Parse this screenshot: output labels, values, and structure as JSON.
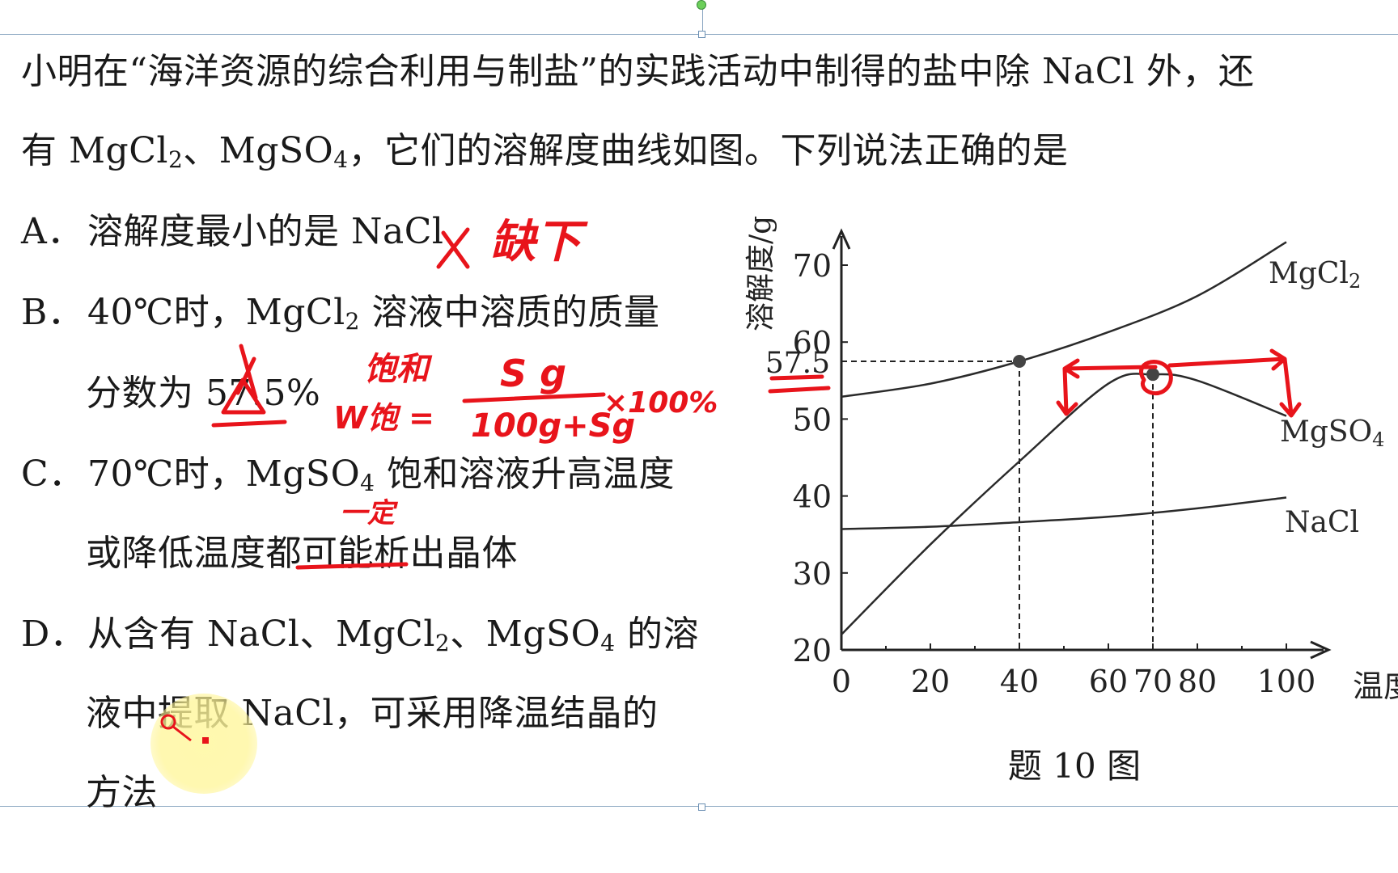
{
  "question": {
    "line1": "小明在“海洋资源的综合利用与制盐”的实践活动中制得的盐中除 NaCl 外，还",
    "line2_pre": "有 MgCl",
    "line2_sub1": "2",
    "line2_mid": "、MgSO",
    "line2_sub2": "4",
    "line2_post": "，它们的溶解度曲线如图。下列说法正确的是"
  },
  "options": {
    "a": {
      "letter": "A．",
      "text": "溶解度最小的是 NaCl"
    },
    "b": {
      "letter": "B．",
      "line1_pre": "40℃时，MgCl",
      "line1_sub": "2",
      "line1_post": " 溶液中溶质的质量",
      "line2": "分数为 57.5%"
    },
    "c": {
      "letter": "C．",
      "line1_pre": "70℃时，MgSO",
      "line1_sub": "4",
      "line1_post": " 饱和溶液升高温度",
      "line2": "或降低温度都可能析出晶体"
    },
    "d": {
      "letter": "D．",
      "line1_pre": "从含有 NaCl、MgCl",
      "line1_sub1": "2",
      "line1_mid": "、MgSO",
      "line1_sub2": "4",
      "line1_post": " 的溶",
      "line2": "液中提取 NaCl，可采用降温结晶的",
      "line3": "方法"
    }
  },
  "chart_data": {
    "type": "line",
    "ylabel": "溶解度/g",
    "xlabel": "温度/℃",
    "caption": "题 10 图",
    "x_ticks": [
      "0",
      "20",
      "40",
      "60",
      "70",
      "80",
      "100"
    ],
    "y_ticks": [
      "20",
      "30",
      "40",
      "50",
      "60",
      "70"
    ],
    "marked_y_label": "57.5",
    "xlim": [
      0,
      100
    ],
    "ylim": [
      20,
      70
    ],
    "series": [
      {
        "name": "MgCl2",
        "x": [
          0,
          20,
          40,
          60,
          80,
          100
        ],
        "y": [
          52.9,
          54.6,
          57.5,
          61.3,
          66.0,
          73.0
        ]
      },
      {
        "name": "MgSO4",
        "x": [
          0,
          20,
          40,
          60,
          70,
          80,
          100
        ],
        "y": [
          22.0,
          33.7,
          44.5,
          54.6,
          55.8,
          55.0,
          50.4
        ]
      },
      {
        "name": "NaCl",
        "x": [
          0,
          20,
          40,
          60,
          80,
          100
        ],
        "y": [
          35.7,
          36.0,
          36.6,
          37.3,
          38.4,
          39.8
        ]
      }
    ],
    "marked_points": [
      {
        "x": 40,
        "y": 57.5
      },
      {
        "x": 70,
        "y": 55.8
      }
    ]
  },
  "annotations": {
    "color": "#e8141b",
    "a_note": "缺下",
    "b_note": "饱和",
    "b_formula_lhs": "W饱 =",
    "b_formula_num": "S g",
    "b_formula_den": "100g+Sg",
    "b_formula_tail": "×100%",
    "c_note": "一定"
  }
}
